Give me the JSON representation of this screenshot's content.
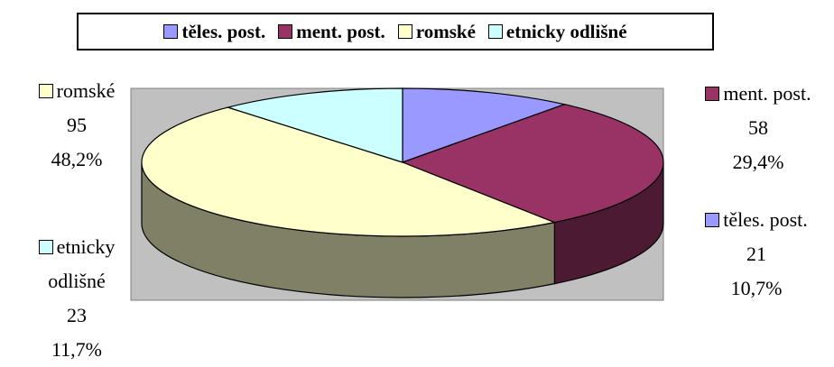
{
  "chart_data": {
    "type": "pie3d",
    "categories": [
      "těles. post.",
      "ment. post.",
      "romské",
      "etnicky odlišné"
    ],
    "values": [
      21,
      58,
      95,
      23
    ],
    "percents": [
      10.7,
      29.4,
      48.2,
      11.7
    ],
    "percent_labels": [
      "10,7%",
      "29,4%",
      "48,2%",
      "11,7%"
    ],
    "colors": [
      "#9999ff",
      "#993366",
      "#ffffcc",
      "#ccffff"
    ],
    "side_colors": [
      "#4d4d80",
      "#4d1a33",
      "#808066",
      "#668080"
    ],
    "legend": "top"
  }
}
